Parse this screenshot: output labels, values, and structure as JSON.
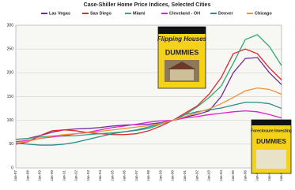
{
  "chart_data": {
    "type": "line",
    "title": "Case-Shiller Home Price Indices, Selected Cities",
    "categories": [
      "Jan-87",
      "Jan-88",
      "Jan-89",
      "Jan-90",
      "Jan-91",
      "Jan-92",
      "Jan-93",
      "Jan-94",
      "Jan-95",
      "Jan-96",
      "Jan-97",
      "Jan-98",
      "Jan-99",
      "Jan-00",
      "Jan-01",
      "Jan-02",
      "Jan-03",
      "Jan-04",
      "Jan-05",
      "Jan-06",
      "Jan-07",
      "Jan-08",
      "Jan-09"
    ],
    "series": [
      {
        "name": "Las Vegas",
        "color": "#6a2c9e",
        "values": [
          60,
          62,
          68,
          75,
          80,
          82,
          83,
          85,
          88,
          90,
          91,
          92,
          95,
          100,
          107,
          112,
          120,
          150,
          200,
          230,
          232,
          200,
          175
        ]
      },
      {
        "name": "San Diego",
        "color": "#e3262d",
        "values": [
          50,
          55,
          68,
          78,
          80,
          78,
          74,
          72,
          70,
          70,
          72,
          78,
          88,
          100,
          115,
          130,
          155,
          190,
          240,
          250,
          240,
          210,
          185
        ]
      },
      {
        "name": "Miami",
        "color": "#2eaa72",
        "values": [
          60,
          62,
          65,
          67,
          67,
          68,
          70,
          72,
          74,
          76,
          79,
          83,
          92,
          100,
          112,
          128,
          148,
          172,
          220,
          270,
          280,
          255,
          215
        ]
      },
      {
        "name": "Cleveland - OH",
        "color": "#e020c8",
        "values": [
          55,
          58,
          62,
          65,
          68,
          72,
          75,
          80,
          85,
          88,
          92,
          96,
          99,
          100,
          105,
          108,
          112,
          115,
          118,
          120,
          118,
          112,
          105
        ]
      },
      {
        "name": "Denver",
        "color": "#2a8a8c",
        "values": [
          52,
          50,
          48,
          48,
          50,
          54,
          60,
          66,
          72,
          76,
          80,
          86,
          94,
          100,
          112,
          118,
          122,
          126,
          132,
          138,
          138,
          135,
          125
        ]
      },
      {
        "name": "Chicago",
        "color": "#f0913a",
        "values": [
          52,
          56,
          62,
          67,
          70,
          72,
          74,
          77,
          80,
          83,
          86,
          89,
          93,
          100,
          108,
          116,
          124,
          135,
          148,
          162,
          168,
          165,
          155
        ]
      }
    ],
    "ylim": [
      0,
      300
    ],
    "yticks": [
      0,
      50,
      100,
      150,
      200,
      250,
      300
    ],
    "grid": true,
    "annotations": [
      "Flipping Houses",
      "DUMMIES",
      "Foreclosure Investing",
      "DUMMIES"
    ]
  }
}
